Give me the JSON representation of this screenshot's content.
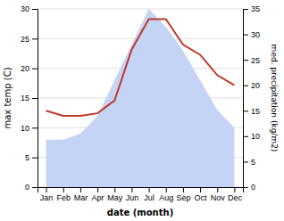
{
  "chart_data": {
    "type": "area",
    "xlabel": "date (month)",
    "ylabel": "max temp (C)",
    "y2label": "med. precipitation (kg/m2)",
    "categories": [
      "Jan",
      "Feb",
      "Mar",
      "Apr",
      "May",
      "Jun",
      "Jul",
      "Aug",
      "Sep",
      "Oct",
      "Nov",
      "Dec"
    ],
    "series": [
      {
        "type": "area",
        "color": "#c5d4f5",
        "values": [
          8,
          8,
          9,
          12,
          18,
          24,
          30,
          27,
          23,
          18,
          13,
          10
        ]
      },
      {
        "type": "line",
        "color": "#c0392b",
        "axis": "y2",
        "values": [
          15,
          14,
          14,
          14.5,
          17,
          27,
          33,
          33,
          28,
          26,
          22,
          20
        ]
      }
    ],
    "ylim": [
      0,
      30
    ],
    "yticks": [
      0,
      5,
      10,
      15,
      20,
      25,
      30
    ],
    "y2lim": [
      0,
      35
    ],
    "y2ticks": [
      0,
      5,
      10,
      15,
      20,
      25,
      30,
      35
    ],
    "grid": true
  }
}
